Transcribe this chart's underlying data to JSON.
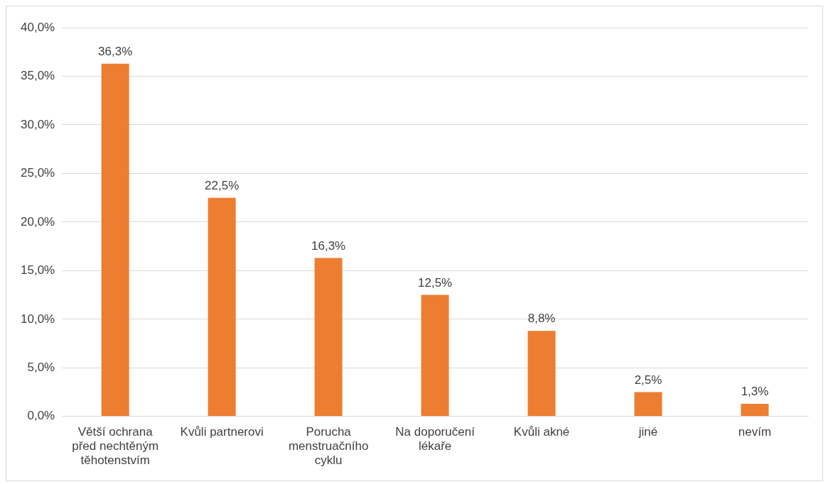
{
  "chart_data": {
    "type": "bar",
    "categories": [
      "Větší ochrana před nechtěným těhotenstvím",
      "Kvůli partnerovi",
      "Porucha menstruačního cyklu",
      "Na doporučení lékaře",
      "Kvůli akné",
      "jiné",
      "nevím"
    ],
    "values": [
      36.3,
      22.5,
      16.3,
      12.5,
      8.8,
      2.5,
      1.3
    ],
    "value_labels": [
      "36,3%",
      "22,5%",
      "16,3%",
      "12,5%",
      "8,8%",
      "2,5%",
      "1,3%"
    ],
    "color": "#ed7d31",
    "ylim": [
      0,
      40
    ],
    "yticks": [
      {
        "value": 0,
        "label": "0,0%"
      },
      {
        "value": 5,
        "label": "5,0%"
      },
      {
        "value": 10,
        "label": "10,0%"
      },
      {
        "value": 15,
        "label": "15,0%"
      },
      {
        "value": 20,
        "label": "20,0%"
      },
      {
        "value": 25,
        "label": "25,0%"
      },
      {
        "value": 30,
        "label": "30,0%"
      },
      {
        "value": 35,
        "label": "35,0%"
      },
      {
        "value": 40,
        "label": "40,0%"
      }
    ],
    "grid": "y",
    "legend": false
  }
}
